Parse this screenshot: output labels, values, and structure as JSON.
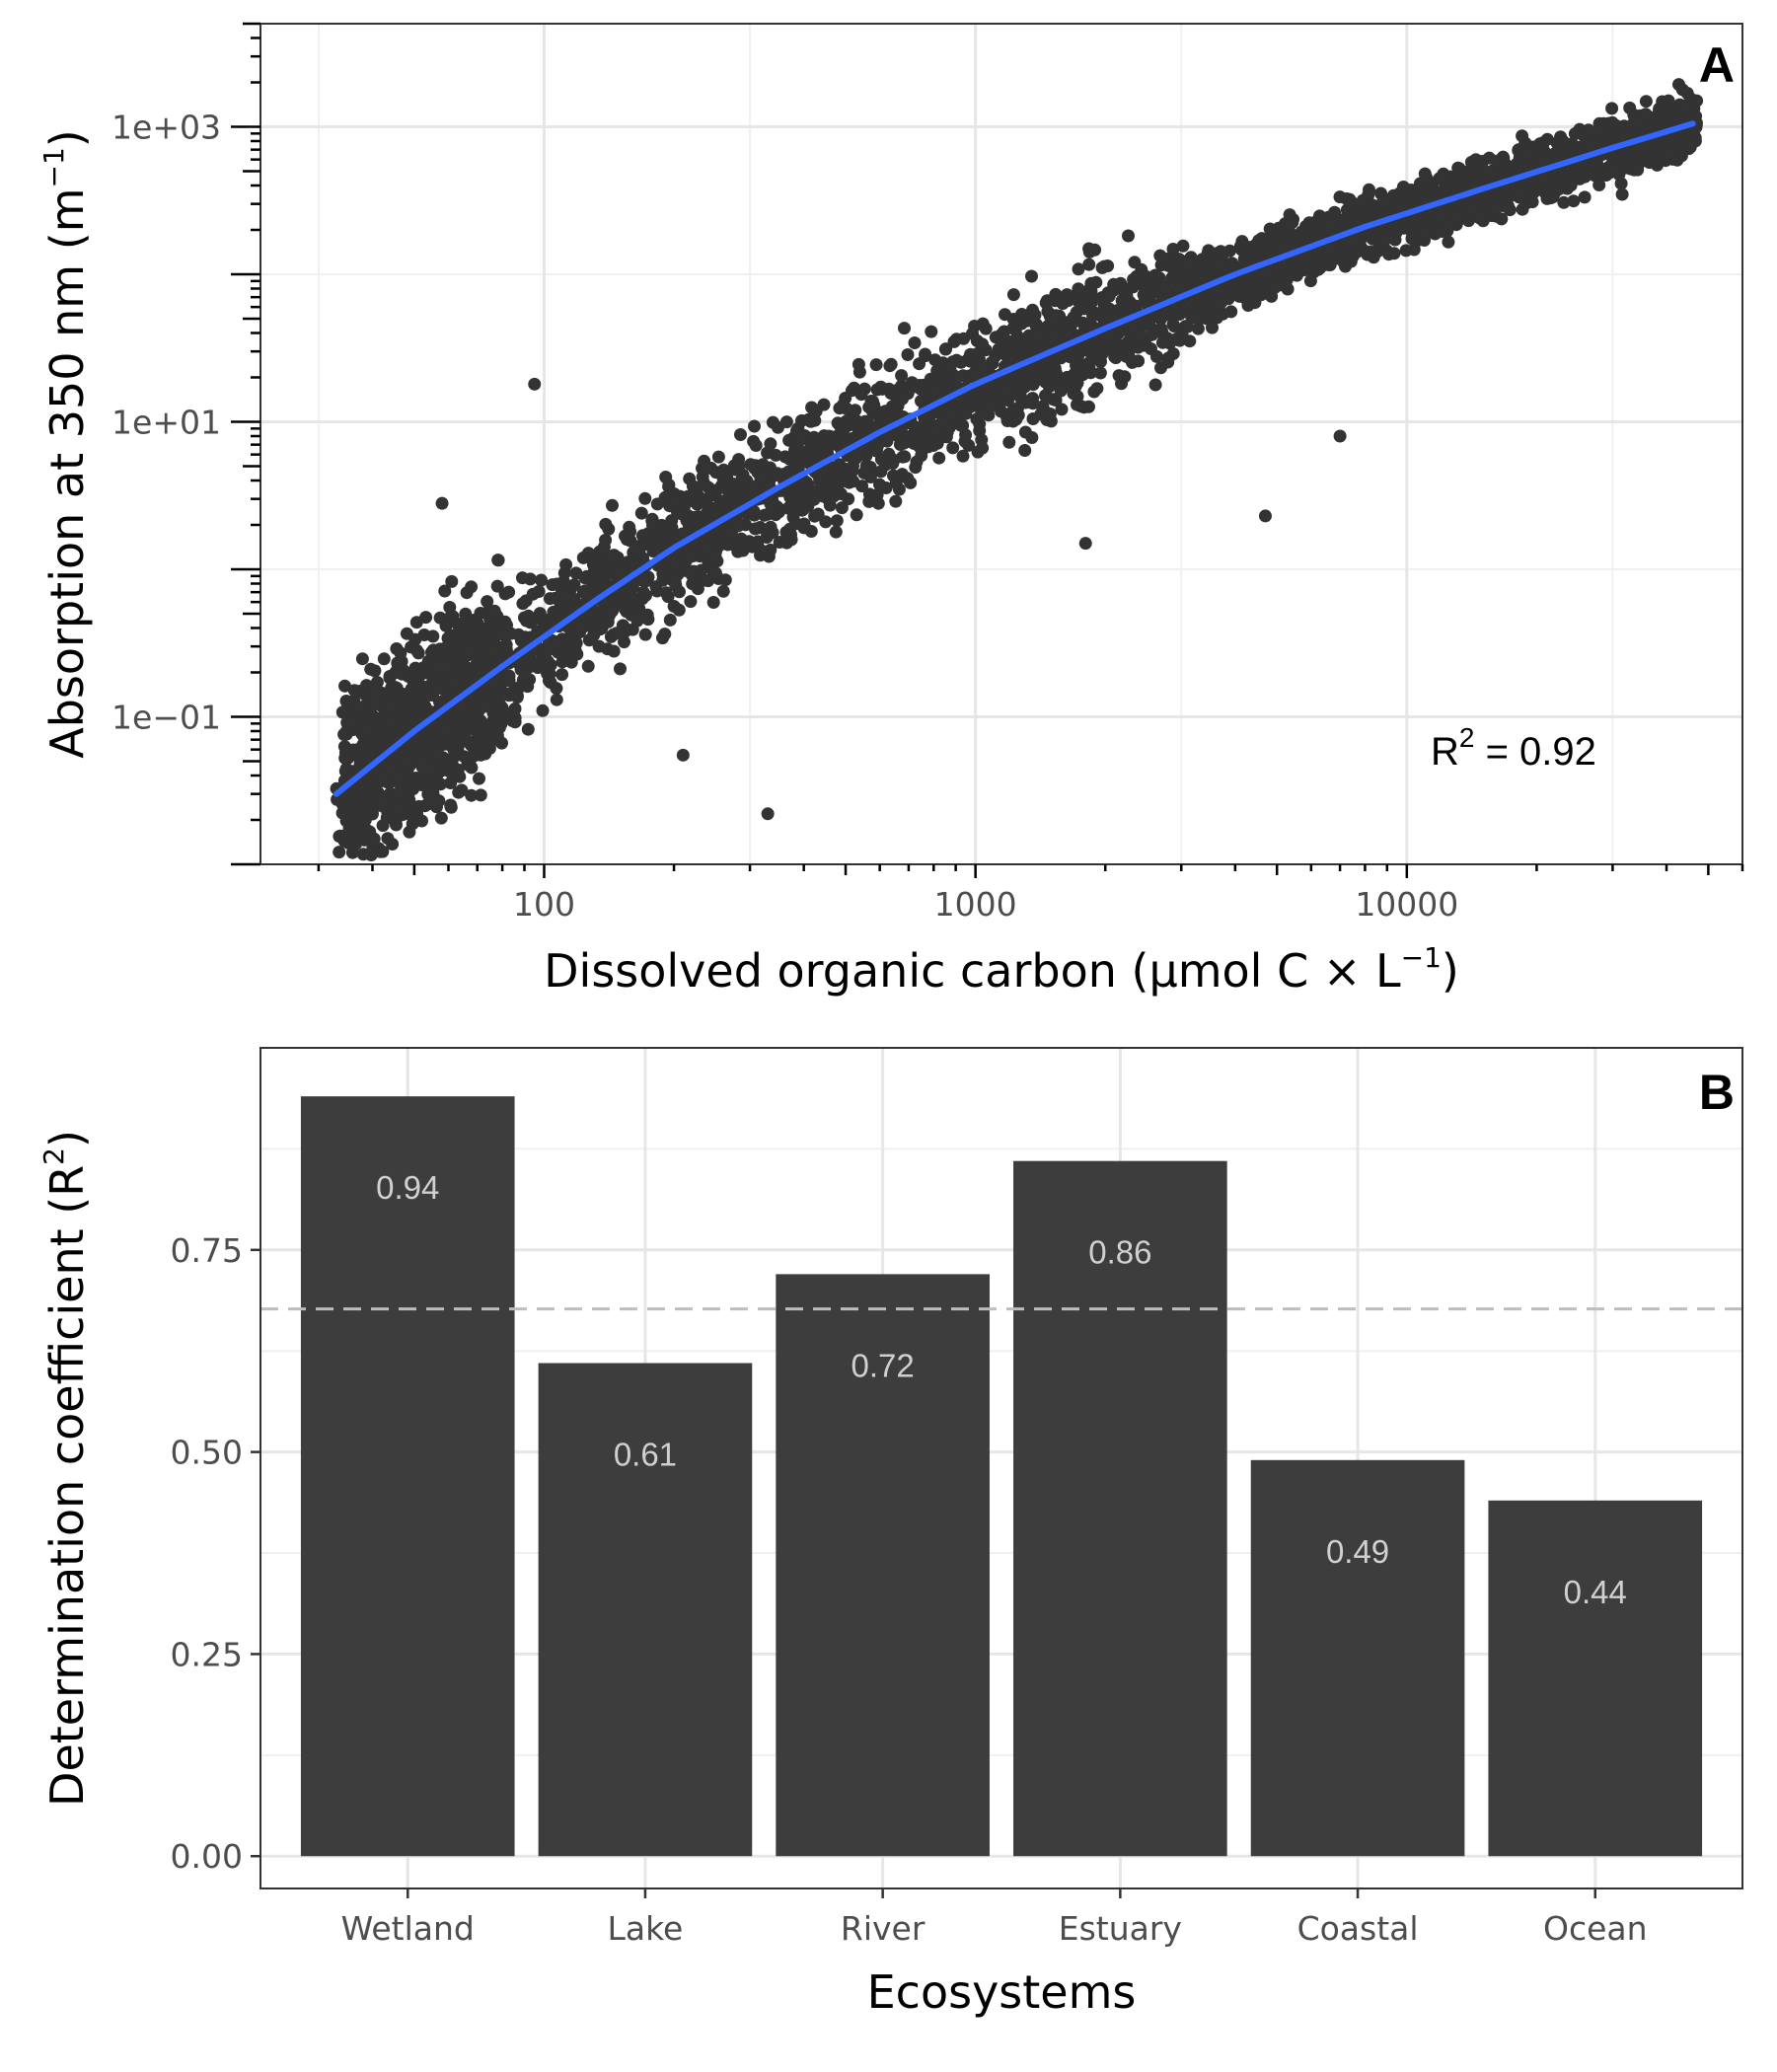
{
  "chart_data": [
    {
      "panel": "A",
      "type": "scatter",
      "xlabel": "Dissolved organic carbon (µmol C × L",
      "xlabel_sup": "−1",
      "xlabel_close": ")",
      "ylabel": "Absorption at 350 nm (m",
      "ylabel_sup": "−1",
      "ylabel_close": ")",
      "x_scale": "log",
      "y_scale": "log",
      "xlim": [
        22,
        60000
      ],
      "ylim": [
        0.01,
        5000
      ],
      "x_ticks": [
        100,
        1000,
        10000
      ],
      "x_tick_labels": [
        "100",
        "1000",
        "10000"
      ],
      "y_ticks": [
        0.1,
        10,
        1000
      ],
      "y_tick_labels": [
        "1e−01",
        "1e+01",
        "1e+03"
      ],
      "point_color": "#333333",
      "fit_color": "#3366ff",
      "fit_line": {
        "x": [
          33,
          50,
          80,
          130,
          200,
          350,
          600,
          1000,
          2000,
          4000,
          8000,
          15000,
          30000,
          46000
        ],
        "y": [
          0.03,
          0.08,
          0.22,
          0.6,
          1.4,
          3.6,
          8.5,
          18,
          43,
          100,
          210,
          380,
          720,
          1050
        ]
      },
      "r2_label": "R",
      "r2_sup": "2",
      "r2_value": " = 0.92",
      "grid": true
    },
    {
      "panel": "B",
      "type": "bar",
      "categories": [
        "Wetland",
        "Lake",
        "River",
        "Estuary",
        "Coastal",
        "Ocean"
      ],
      "values": [
        0.94,
        0.61,
        0.72,
        0.86,
        0.49,
        0.44
      ],
      "data_labels": [
        "0.94",
        "0.61",
        "0.72",
        "0.86",
        "0.49",
        "0.44"
      ],
      "xlabel": "Ecosystems",
      "ylabel": "Determination coefficient (R",
      "ylabel_sup": "2",
      "ylabel_close": ")",
      "ylim": [
        -0.04,
        1.0
      ],
      "y_ticks": [
        0,
        0.25,
        0.5,
        0.75
      ],
      "y_tick_labels": [
        "0.00",
        "0.25",
        "0.50",
        "0.75"
      ],
      "reference_line": 0.677,
      "bar_color": "#3d3d3d",
      "grid": true
    }
  ]
}
